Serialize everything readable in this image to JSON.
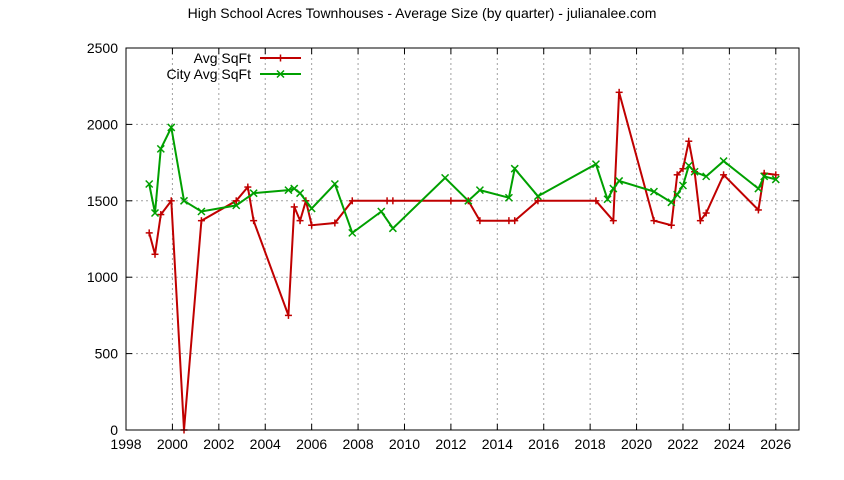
{
  "chart_data": {
    "type": "line",
    "title": "High School Acres Townhouses - Average Size (by quarter) - julianalee.com",
    "xlabel": "",
    "ylabel": "",
    "xlim": [
      1998,
      2027
    ],
    "ylim": [
      0,
      2500
    ],
    "x_ticks": [
      1998,
      2000,
      2002,
      2004,
      2006,
      2008,
      2010,
      2012,
      2014,
      2016,
      2018,
      2020,
      2022,
      2024,
      2026
    ],
    "y_ticks": [
      0,
      500,
      1000,
      1500,
      2000,
      2500
    ],
    "grid": true,
    "legend_position": "top-left",
    "series": [
      {
        "name": "Avg SqFt",
        "color": "#c00000",
        "marker": "plus",
        "points": [
          [
            1999.0,
            1290
          ],
          [
            1999.25,
            1150
          ],
          [
            1999.5,
            1410
          ],
          [
            1999.95,
            1500
          ],
          [
            2000.5,
            0
          ],
          [
            2001.25,
            1370
          ],
          [
            2002.75,
            1500
          ],
          [
            2003.25,
            1590
          ],
          [
            2003.5,
            1370
          ],
          [
            2005.0,
            750
          ],
          [
            2005.25,
            1460
          ],
          [
            2005.5,
            1370
          ],
          [
            2005.75,
            1500
          ],
          [
            2006.0,
            1340
          ],
          [
            2007.0,
            1355
          ],
          [
            2007.75,
            1500
          ],
          [
            2009.25,
            1500
          ],
          [
            2009.5,
            1500
          ],
          [
            2012.0,
            1500
          ],
          [
            2012.75,
            1500
          ],
          [
            2013.25,
            1370
          ],
          [
            2014.5,
            1370
          ],
          [
            2014.75,
            1370
          ],
          [
            2015.75,
            1500
          ],
          [
            2018.25,
            1500
          ],
          [
            2019.0,
            1370
          ],
          [
            2019.25,
            2210
          ],
          [
            2020.75,
            1370
          ],
          [
            2021.5,
            1340
          ],
          [
            2021.75,
            1670
          ],
          [
            2022.0,
            1710
          ],
          [
            2022.25,
            1890
          ],
          [
            2022.5,
            1690
          ],
          [
            2022.75,
            1370
          ],
          [
            2023.0,
            1420
          ],
          [
            2023.75,
            1670
          ],
          [
            2025.25,
            1440
          ],
          [
            2025.5,
            1680
          ],
          [
            2026.0,
            1670
          ]
        ]
      },
      {
        "name": "City Avg SqFt",
        "color": "#00a000",
        "marker": "cross",
        "points": [
          [
            1999.0,
            1610
          ],
          [
            1999.25,
            1420
          ],
          [
            1999.5,
            1840
          ],
          [
            1999.95,
            1980
          ],
          [
            2000.5,
            1500
          ],
          [
            2001.25,
            1430
          ],
          [
            2002.75,
            1470
          ],
          [
            2003.5,
            1550
          ],
          [
            2005.0,
            1570
          ],
          [
            2005.25,
            1580
          ],
          [
            2005.5,
            1550
          ],
          [
            2006.0,
            1450
          ],
          [
            2007.0,
            1610
          ],
          [
            2007.75,
            1290
          ],
          [
            2009.0,
            1430
          ],
          [
            2009.5,
            1320
          ],
          [
            2011.75,
            1650
          ],
          [
            2012.75,
            1500
          ],
          [
            2013.25,
            1570
          ],
          [
            2014.5,
            1520
          ],
          [
            2014.75,
            1710
          ],
          [
            2015.75,
            1530
          ],
          [
            2018.25,
            1740
          ],
          [
            2018.75,
            1510
          ],
          [
            2019.0,
            1580
          ],
          [
            2019.25,
            1630
          ],
          [
            2020.75,
            1560
          ],
          [
            2021.5,
            1490
          ],
          [
            2021.75,
            1540
          ],
          [
            2022.0,
            1600
          ],
          [
            2022.25,
            1730
          ],
          [
            2022.5,
            1690
          ],
          [
            2023.0,
            1660
          ],
          [
            2023.75,
            1760
          ],
          [
            2025.25,
            1580
          ],
          [
            2025.5,
            1660
          ],
          [
            2026.0,
            1640
          ]
        ]
      }
    ]
  }
}
